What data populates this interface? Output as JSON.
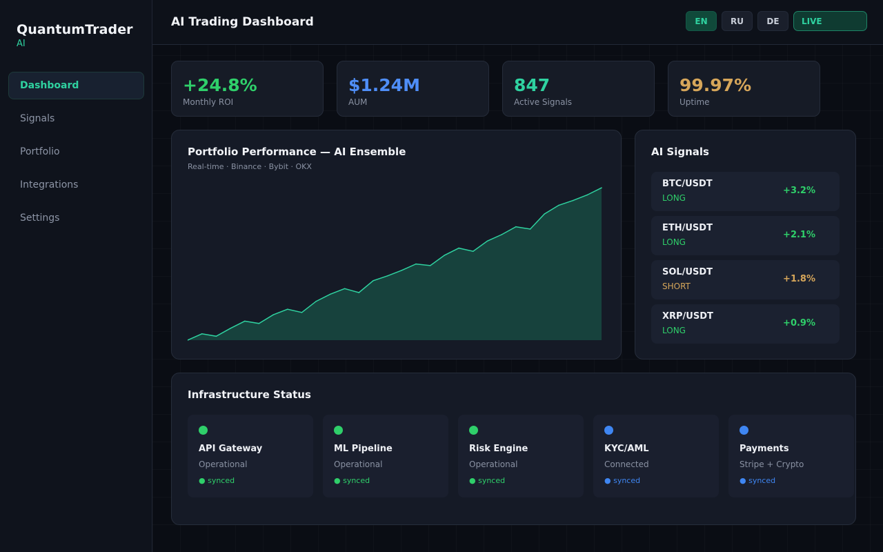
{
  "brand": {
    "name": "QuantumTrader",
    "sub": "AI"
  },
  "sidebar": {
    "items": [
      {
        "label": "Dashboard",
        "active": true
      },
      {
        "label": "Signals",
        "active": false
      },
      {
        "label": "Portfolio",
        "active": false
      },
      {
        "label": "Integrations",
        "active": false
      },
      {
        "label": "Settings",
        "active": false
      }
    ]
  },
  "header": {
    "title": "AI Trading Dashboard",
    "languages": [
      {
        "label": "EN",
        "active": true
      },
      {
        "label": "RU",
        "active": false
      },
      {
        "label": "DE",
        "active": false
      }
    ],
    "live_label": "LIVE"
  },
  "kpis": [
    {
      "value": "+24.8%",
      "label": "Monthly ROI",
      "color": "#2fcf6a"
    },
    {
      "value": "$1.24M",
      "label": "AUM",
      "color": "#4f8ef7"
    },
    {
      "value": "847",
      "label": "Active Signals",
      "color": "#2fd2a0"
    },
    {
      "value": "99.97%",
      "label": "Uptime",
      "color": "#d6a65a"
    }
  ],
  "performance": {
    "title": "Portfolio Performance — AI Ensemble",
    "subtitle": "Real-time · Binance · Bybit · OKX"
  },
  "chart_data": {
    "type": "area",
    "title": "Portfolio Performance — AI Ensemble",
    "values": [
      0,
      4,
      2.5,
      7.5,
      12,
      10.5,
      16,
      19.5,
      17.5,
      24.5,
      29,
      32.5,
      30,
      37.5,
      40.5,
      44,
      48,
      47,
      53.5,
      58,
      56,
      62.5,
      66.5,
      71.5,
      70,
      79.5,
      85,
      88,
      91.5,
      96
    ],
    "ylim": [
      0,
      100
    ],
    "line_color": "#2fd2a0",
    "fill_color": "#17423d"
  },
  "signals": {
    "title": "AI Signals",
    "items": [
      {
        "pair": "BTC/USDT",
        "side": "LONG",
        "change": "+3.2%",
        "side_color": "#2fcf6a",
        "change_color": "#2fcf6a"
      },
      {
        "pair": "ETH/USDT",
        "side": "LONG",
        "change": "+2.1%",
        "side_color": "#2fcf6a",
        "change_color": "#2fcf6a"
      },
      {
        "pair": "SOL/USDT",
        "side": "SHORT",
        "change": "+1.8%",
        "side_color": "#d6a65a",
        "change_color": "#d6a65a"
      },
      {
        "pair": "XRP/USDT",
        "side": "LONG",
        "change": "+0.9%",
        "side_color": "#2fcf6a",
        "change_color": "#2fcf6a"
      }
    ]
  },
  "infrastructure": {
    "title": "Infrastructure Status",
    "items": [
      {
        "name": "API Gateway",
        "state": "Operational",
        "sync": "● synced",
        "color": "#2fcf6a"
      },
      {
        "name": "ML Pipeline",
        "state": "Operational",
        "sync": "● synced",
        "color": "#2fcf6a"
      },
      {
        "name": "Risk Engine",
        "state": "Operational",
        "sync": "● synced",
        "color": "#2fcf6a"
      },
      {
        "name": "KYC/AML",
        "state": "Connected",
        "sync": "● synced",
        "color": "#3f86f2"
      },
      {
        "name": "Payments",
        "state": "Stripe + Crypto",
        "sync": "● synced",
        "color": "#3f86f2"
      }
    ]
  }
}
